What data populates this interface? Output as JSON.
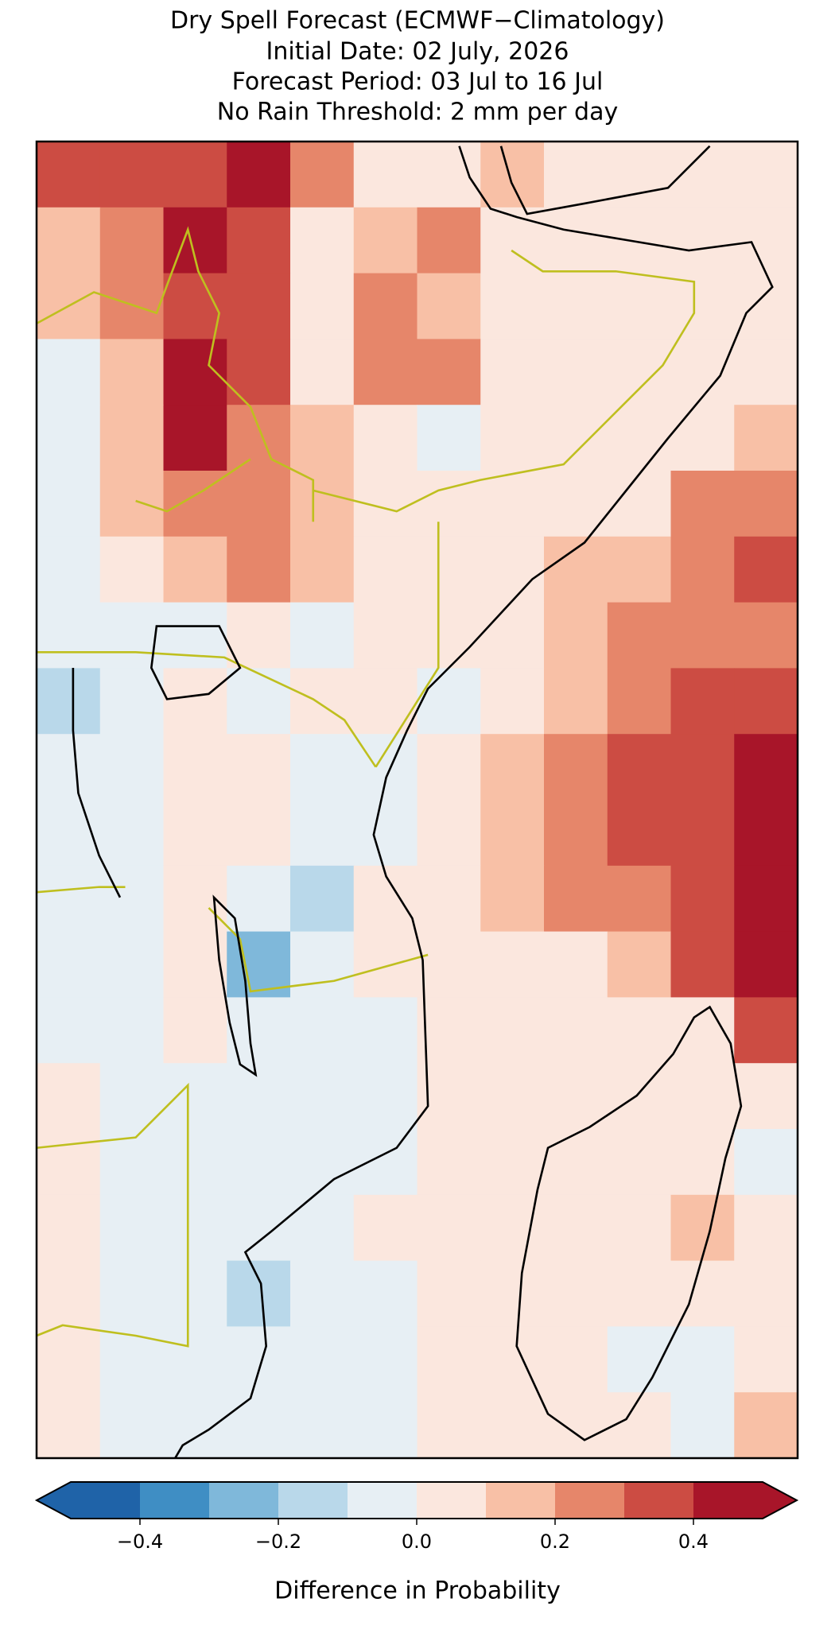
{
  "header": {
    "title_lines": [
      "Dry Spell Forecast (ECMWF−Climatology)",
      "Initial Date: 02 July, 2026",
      "Forecast Period: 03 Jul to 16 Jul",
      "No Rain Threshold: 2 mm per day"
    ]
  },
  "map": {
    "cells": [
      [
        0.3,
        0.3,
        0.3,
        0.4,
        0.2,
        0.05,
        0.05,
        0.1,
        0.05,
        0.05,
        0.05,
        0.05
      ],
      [
        0.1,
        0.2,
        0.4,
        0.3,
        0.05,
        0.1,
        0.2,
        0.05,
        0.05,
        0.05,
        0.05,
        0.05
      ],
      [
        0.1,
        0.2,
        0.3,
        0.3,
        0.05,
        0.2,
        0.1,
        0.05,
        0.05,
        0.05,
        0.05,
        0.05
      ],
      [
        -0.05,
        0.1,
        0.4,
        0.3,
        0.05,
        0.2,
        0.2,
        0.05,
        0.05,
        0.05,
        0.05,
        0.05
      ],
      [
        -0.05,
        0.1,
        0.4,
        0.2,
        0.1,
        0.05,
        -0.05,
        0.05,
        0.05,
        0.05,
        0.05,
        0.15
      ],
      [
        -0.05,
        0.1,
        0.2,
        0.2,
        0.1,
        0.05,
        0.05,
        0.05,
        0.05,
        0.05,
        0.2,
        0.25
      ],
      [
        -0.05,
        0.05,
        0.1,
        0.2,
        0.15,
        0.05,
        0.05,
        0.05,
        0.1,
        0.15,
        0.25,
        0.3
      ],
      [
        -0.1,
        -0.05,
        -0.1,
        0.05,
        -0.05,
        0.05,
        0.05,
        0.05,
        0.15,
        0.2,
        0.25,
        0.25
      ],
      [
        -0.2,
        -0.05,
        0.05,
        -0.05,
        0.05,
        0.05,
        -0.05,
        0.05,
        0.1,
        0.2,
        0.3,
        0.3
      ],
      [
        -0.1,
        -0.05,
        0.05,
        0.05,
        -0.05,
        -0.1,
        0.05,
        0.1,
        0.2,
        0.3,
        0.35,
        0.45
      ],
      [
        -0.05,
        -0.05,
        0.05,
        0.05,
        -0.1,
        -0.05,
        0.05,
        0.15,
        0.25,
        0.3,
        0.3,
        0.45
      ],
      [
        -0.1,
        -0.05,
        0.05,
        -0.1,
        -0.2,
        0.05,
        0.05,
        0.1,
        0.2,
        0.25,
        0.3,
        0.45
      ],
      [
        -0.05,
        -0.05,
        0.05,
        -0.3,
        -0.05,
        0.05,
        0.05,
        0.05,
        0.05,
        0.1,
        0.3,
        0.45
      ],
      [
        -0.05,
        -0.05,
        0.05,
        -0.1,
        -0.05,
        -0.05,
        0.05,
        0.05,
        0.05,
        0.05,
        0.05,
        0.3
      ],
      [
        0.05,
        -0.05,
        -0.05,
        -0.05,
        -0.05,
        -0.05,
        0.05,
        0.05,
        0.05,
        0.05,
        0.05,
        0.05
      ],
      [
        0.05,
        -0.05,
        -0.05,
        -0.05,
        -0.05,
        -0.05,
        0.05,
        0.05,
        0.05,
        0.05,
        0.05,
        -0.05
      ],
      [
        0.05,
        -0.05,
        -0.1,
        -0.1,
        -0.05,
        0.05,
        0.05,
        0.05,
        0.05,
        0.05,
        0.1,
        0.05
      ],
      [
        0.05,
        -0.05,
        -0.05,
        -0.2,
        -0.1,
        -0.05,
        0.05,
        0.05,
        0.05,
        0.05,
        0.05,
        0.05
      ],
      [
        0.05,
        -0.05,
        -0.05,
        -0.1,
        -0.05,
        -0.05,
        0.05,
        0.05,
        0.05,
        -0.05,
        -0.1,
        0.05
      ],
      [
        0.05,
        -0.05,
        -0.1,
        -0.05,
        -0.05,
        -0.05,
        0.05,
        0.05,
        0.05,
        0.05,
        -0.05,
        0.1
      ]
    ]
  },
  "colorbar": {
    "bounds": [
      -0.5,
      -0.4,
      -0.3,
      -0.2,
      -0.1,
      0,
      0.1,
      0.2,
      0.3,
      0.4,
      0.5
    ],
    "colors": [
      "#1f63a8",
      "#3f8ec4",
      "#7fb8da",
      "#b9d8ea",
      "#e7eff4",
      "#fbe7de",
      "#f8c0a6",
      "#e6866a",
      "#cc4c43",
      "#a81529"
    ],
    "extend": "both",
    "ticks": [
      {
        "value": -0.4,
        "label": "−0.4"
      },
      {
        "value": -0.2,
        "label": "−0.2"
      },
      {
        "value": 0,
        "label": "0.0"
      },
      0.2,
      0.4
    ],
    "label": "Difference in Probability"
  }
}
